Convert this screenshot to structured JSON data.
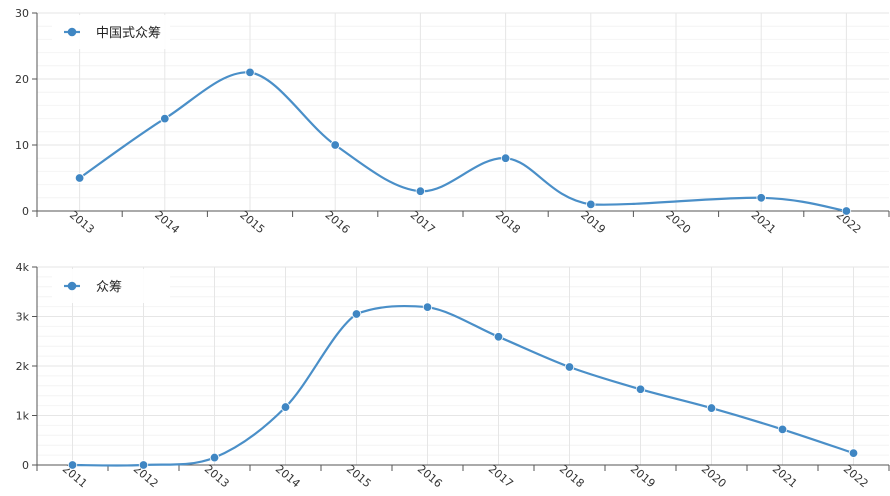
{
  "colors": {
    "series": "#4a8fc8",
    "marker": "#3f86c3",
    "axis": "#555555",
    "grid_major": "#e6e6e6",
    "grid_minor": "#f4f4f4"
  },
  "chart_data": [
    {
      "type": "line",
      "title": "",
      "xlabel": "",
      "ylabel": "",
      "categories": [
        "2013",
        "2014",
        "2015",
        "2016",
        "2017",
        "2018",
        "2019",
        "2020",
        "2021",
        "2022"
      ],
      "series": [
        {
          "name": "中国式众筹",
          "values": [
            5,
            14,
            21,
            10,
            3,
            8,
            1,
            null,
            2,
            0
          ]
        }
      ],
      "ylim": [
        0,
        30
      ],
      "yticks": [
        0,
        10,
        20,
        30
      ],
      "ytick_labels": [
        "0",
        "10",
        "20",
        "30"
      ],
      "grid": true,
      "smooth": true,
      "legend_position": "top-left"
    },
    {
      "type": "line",
      "title": "",
      "xlabel": "",
      "ylabel": "",
      "categories": [
        "2011",
        "2012",
        "2013",
        "2014",
        "2015",
        "2016",
        "2017",
        "2018",
        "2019",
        "2020",
        "2021",
        "2022"
      ],
      "series": [
        {
          "name": "众筹",
          "values": [
            0,
            0,
            150,
            1170,
            3050,
            3190,
            2590,
            1980,
            1530,
            1150,
            720,
            240
          ]
        }
      ],
      "ylim": [
        0,
        4000
      ],
      "yticks": [
        0,
        1000,
        2000,
        3000,
        4000
      ],
      "ytick_labels": [
        "0",
        "1k",
        "2k",
        "3k",
        "4k"
      ],
      "grid": true,
      "smooth": true,
      "legend_position": "top-left"
    }
  ]
}
